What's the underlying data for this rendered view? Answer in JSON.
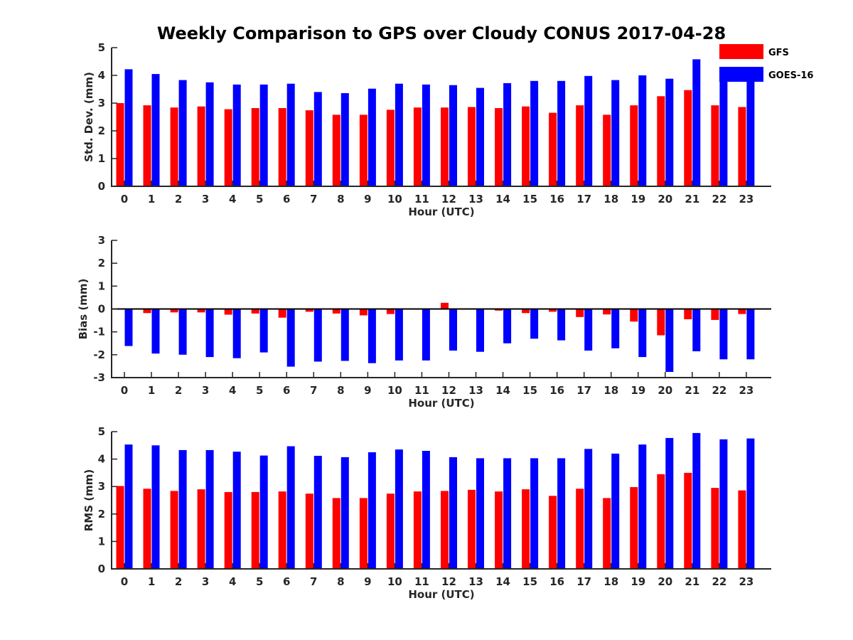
{
  "title": "Weekly Comparison to GPS over Cloudy CONUS 2017-04-28",
  "legend": {
    "placement": "top-right",
    "entries": [
      {
        "label": "GFS",
        "color": "#ff0000"
      },
      {
        "label": "GOES-16",
        "color": "#0000ff"
      }
    ]
  },
  "chart_data": [
    {
      "type": "bar",
      "categories": [
        "0",
        "1",
        "2",
        "3",
        "4",
        "5",
        "6",
        "7",
        "8",
        "9",
        "10",
        "11",
        "12",
        "13",
        "14",
        "15",
        "16",
        "17",
        "18",
        "19",
        "20",
        "21",
        "22",
        "23"
      ],
      "xlabel": "Hour (UTC)",
      "ylabel": "Std. Dev. (mm)",
      "ylim": [
        0,
        5
      ],
      "yticks": [
        "0",
        "1",
        "2",
        "3",
        "4",
        "5"
      ],
      "series": [
        {
          "name": "GFS",
          "color": "#ff0000",
          "values": [
            3.0,
            2.92,
            2.84,
            2.88,
            2.78,
            2.82,
            2.82,
            2.74,
            2.58,
            2.58,
            2.76,
            2.84,
            2.84,
            2.86,
            2.82,
            2.88,
            2.65,
            2.92,
            2.58,
            2.92,
            3.25,
            3.47,
            2.92,
            2.86
          ]
        },
        {
          "name": "GOES-16",
          "color": "#0000ff",
          "values": [
            4.22,
            4.05,
            3.83,
            3.75,
            3.67,
            3.67,
            3.7,
            3.4,
            3.36,
            3.52,
            3.7,
            3.67,
            3.65,
            3.55,
            3.72,
            3.8,
            3.8,
            3.98,
            3.83,
            4.0,
            3.88,
            4.58,
            4.15,
            3.9
          ]
        }
      ]
    },
    {
      "type": "bar",
      "categories": [
        "0",
        "1",
        "2",
        "3",
        "4",
        "5",
        "6",
        "7",
        "8",
        "9",
        "10",
        "11",
        "12",
        "13",
        "14",
        "15",
        "16",
        "17",
        "18",
        "19",
        "20",
        "21",
        "22",
        "23"
      ],
      "xlabel": "Hour (UTC)",
      "ylabel": "Bias (mm)",
      "ylim": [
        -3,
        3
      ],
      "yticks": [
        "-3",
        "-2",
        "-1",
        "0",
        "1",
        "2",
        "3"
      ],
      "zero_line": true,
      "series": [
        {
          "name": "GFS",
          "color": "#ff0000",
          "values": [
            -0.02,
            -0.18,
            -0.15,
            -0.15,
            -0.25,
            -0.2,
            -0.38,
            -0.12,
            -0.2,
            -0.28,
            -0.22,
            -0.03,
            0.27,
            -0.03,
            -0.07,
            -0.18,
            -0.12,
            -0.35,
            -0.24,
            -0.55,
            -1.15,
            -0.45,
            -0.48,
            -0.22
          ]
        },
        {
          "name": "GOES-16",
          "color": "#0000ff",
          "values": [
            -1.62,
            -1.95,
            -2.0,
            -2.1,
            -2.15,
            -1.9,
            -2.52,
            -2.3,
            -2.27,
            -2.37,
            -2.25,
            -2.25,
            -1.82,
            -1.87,
            -1.5,
            -1.3,
            -1.37,
            -1.82,
            -1.72,
            -2.1,
            -2.75,
            -1.85,
            -2.2,
            -2.2
          ]
        }
      ]
    },
    {
      "type": "bar",
      "categories": [
        "0",
        "1",
        "2",
        "3",
        "4",
        "5",
        "6",
        "7",
        "8",
        "9",
        "10",
        "11",
        "12",
        "13",
        "14",
        "15",
        "16",
        "17",
        "18",
        "19",
        "20",
        "21",
        "22",
        "23"
      ],
      "xlabel": "Hour (UTC)",
      "ylabel": "RMS (mm)",
      "ylim": [
        0,
        5
      ],
      "yticks": [
        "0",
        "1",
        "2",
        "3",
        "4",
        "5"
      ],
      "series": [
        {
          "name": "GFS",
          "color": "#ff0000",
          "values": [
            3.02,
            2.92,
            2.84,
            2.9,
            2.8,
            2.8,
            2.82,
            2.74,
            2.58,
            2.58,
            2.74,
            2.82,
            2.84,
            2.88,
            2.82,
            2.9,
            2.66,
            2.92,
            2.58,
            2.98,
            3.45,
            3.5,
            2.95,
            2.86
          ]
        },
        {
          "name": "GOES-16",
          "color": "#0000ff",
          "values": [
            4.53,
            4.5,
            4.33,
            4.33,
            4.27,
            4.13,
            4.47,
            4.12,
            4.07,
            4.25,
            4.35,
            4.3,
            4.07,
            4.03,
            4.03,
            4.03,
            4.03,
            4.37,
            4.2,
            4.53,
            4.77,
            4.95,
            4.72,
            4.75
          ]
        }
      ]
    }
  ]
}
